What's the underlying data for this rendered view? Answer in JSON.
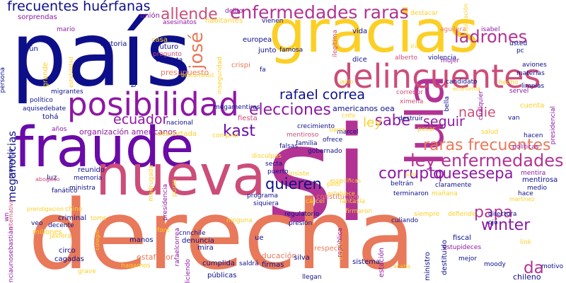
{
  "palette": {
    "navy": "#0d0f8a",
    "purple": "#6a0aa8",
    "violet": "#8e18a4",
    "magenta": "#b23393",
    "rose": "#cc4d79",
    "coral": "#e8795a",
    "amber": "#f7a13c",
    "gold": "#fccf25"
  },
  "words": [
    {
      "text": "si",
      "color": "magenta"
    },
    {
      "text": "país",
      "color": "navy"
    },
    {
      "text": "derecha",
      "color": "coral"
    },
    {
      "text": "gracias",
      "color": "gold"
    },
    {
      "text": "fraude",
      "color": "purple"
    },
    {
      "text": "nueva",
      "color": "rose"
    },
    {
      "text": "lula",
      "color": "magenta"
    },
    {
      "text": "delincuentes",
      "color": "rose"
    },
    {
      "text": "posibilidad",
      "color": "violet"
    },
    {
      "text": "enfermedades raras",
      "color": "magenta"
    },
    {
      "text": "ley enfermedades",
      "color": "magenta"
    },
    {
      "text": "raras frecuentes",
      "color": "coral"
    },
    {
      "text": "frecuentes huérfanas",
      "color": "navy"
    },
    {
      "text": "ladrones",
      "color": "magenta"
    },
    {
      "text": "allende",
      "color": "rose"
    },
    {
      "text": "josé",
      "color": "coral"
    },
    {
      "text": "rafael correa",
      "color": "navy"
    },
    {
      "text": "elecciones",
      "color": "violet"
    },
    {
      "text": "kast",
      "color": "purple"
    },
    {
      "text": "ecuador",
      "color": "violet"
    },
    {
      "text": "corrupto",
      "color": "violet"
    },
    {
      "text": "quesesepa",
      "color": "violet"
    },
    {
      "text": "quieren",
      "color": "navy"
    },
    {
      "text": "seguir",
      "color": "violet"
    },
    {
      "text": "nadie",
      "color": "rose"
    },
    {
      "text": "sabe",
      "color": "violet"
    },
    {
      "text": "winter",
      "color": "violet"
    },
    {
      "text": "papa",
      "color": "magenta"
    },
    {
      "text": "da",
      "color": "magenta"
    },
    {
      "text": "meganoticias",
      "color": "navy"
    },
    {
      "text": "ley",
      "color": "gold"
    },
    {
      "text": "americanos oea",
      "color": "navy"
    },
    {
      "text": "organización americanos",
      "color": "violet"
    },
    {
      "text": "aún",
      "color": "navy"
    },
    {
      "text": "sorprendas",
      "color": "violet"
    },
    {
      "text": "unión",
      "color": "violet"
    },
    {
      "text": "asesinatos",
      "color": "violet"
    },
    {
      "text": "delito",
      "color": "violet"
    },
    {
      "text": "habitantes",
      "color": "gold"
    },
    {
      "text": "vienen",
      "color": "navy"
    },
    {
      "text": "mario",
      "color": "violet"
    },
    {
      "text": "historia",
      "color": "navy"
    },
    {
      "text": "casa",
      "color": "gold"
    },
    {
      "text": "futuro",
      "color": "navy"
    },
    {
      "text": "pregunto",
      "color": "rose"
    },
    {
      "text": "corrupta",
      "color": "navy"
    },
    {
      "text": "trump",
      "color": "navy"
    },
    {
      "text": "presupuesto",
      "color": "coral"
    },
    {
      "text": "europea",
      "color": "navy"
    },
    {
      "text": "junto",
      "color": "navy"
    },
    {
      "text": "crispi",
      "color": "coral"
    },
    {
      "text": "inseguridad",
      "color": "gold"
    },
    {
      "text": "famosa",
      "color": "navy"
    },
    {
      "text": "fa",
      "color": "navy"
    },
    {
      "text": "iraci",
      "color": "gold"
    },
    {
      "text": "vida",
      "color": "navy"
    },
    {
      "text": "ilegítima",
      "color": "rose"
    },
    {
      "text": "dice",
      "color": "navy"
    },
    {
      "text": "aguilera",
      "color": "coral"
    },
    {
      "text": "isabel",
      "color": "violet"
    },
    {
      "text": "mujer",
      "color": "violet"
    },
    {
      "text": "usted",
      "color": "navy"
    },
    {
      "text": "pc",
      "color": "navy"
    },
    {
      "text": "destacar",
      "color": "gold"
    },
    {
      "text": "explicación",
      "color": "gold"
    },
    {
      "text": "alberto",
      "color": "rose"
    },
    {
      "text": "violencia",
      "color": "navy"
    },
    {
      "text": "aviones",
      "color": "navy"
    },
    {
      "text": "materias",
      "color": "navy"
    },
    {
      "text": "candidato",
      "color": "navy"
    },
    {
      "text": "hecho",
      "color": "gold"
    },
    {
      "text": "limpias",
      "color": "navy"
    },
    {
      "text": "servel",
      "color": "violet"
    },
    {
      "text": "cuenta",
      "color": "gold"
    },
    {
      "text": "corredor",
      "color": "rose"
    },
    {
      "text": "ximena",
      "color": "rose"
    },
    {
      "text": "bella",
      "color": "navy"
    },
    {
      "text": "cualquier",
      "color": "violet"
    },
    {
      "text": "político",
      "color": "navy"
    },
    {
      "text": "aquisedebate",
      "color": "navy"
    },
    {
      "text": "migrantes",
      "color": "navy"
    },
    {
      "text": "tohá",
      "color": "navy"
    },
    {
      "text": "nacional",
      "color": "navy"
    },
    {
      "text": "fiesta",
      "color": "rose"
    },
    {
      "text": "megamentiras",
      "color": "navy"
    },
    {
      "text": "cntv",
      "color": "gold"
    },
    {
      "text": "crecimiento",
      "color": "navy"
    },
    {
      "text": "marcel",
      "color": "navy"
    },
    {
      "text": "sierra",
      "color": "gold"
    },
    {
      "text": "destruir",
      "color": "navy"
    },
    {
      "text": "pesar",
      "color": "gold"
    },
    {
      "text": "salud",
      "color": "gold"
    },
    {
      "text": "van",
      "color": "navy"
    },
    {
      "text": "hacen",
      "color": "navy"
    },
    {
      "text": "políticas",
      "color": "violet"
    },
    {
      "text": "presidencial",
      "color": "violet"
    },
    {
      "text": "medio",
      "color": "navy"
    },
    {
      "text": "mentira",
      "color": "violet"
    },
    {
      "text": "mentirosa",
      "color": "navy"
    },
    {
      "text": "hace",
      "color": "navy"
    },
    {
      "text": "mentiroso",
      "color": "rose"
    },
    {
      "text": "ofrece",
      "color": "navy"
    },
    {
      "text": "gobernado",
      "color": "navy"
    },
    {
      "text": "familia",
      "color": "navy"
    },
    {
      "text": "falsas",
      "color": "navy"
    },
    {
      "text": "secta",
      "color": "navy"
    },
    {
      "text": "puerto",
      "color": "navy"
    },
    {
      "text": "insiste",
      "color": "gold"
    },
    {
      "text": "especificas",
      "color": "gold"
    },
    {
      "text": "establece",
      "color": "gold"
    },
    {
      "text": "disculpas",
      "color": "gold"
    },
    {
      "text": "beltrán",
      "color": "navy"
    },
    {
      "text": "claramente",
      "color": "navy"
    },
    {
      "text": "mañana",
      "color": "gold"
    },
    {
      "text": "terminaron",
      "color": "navy"
    },
    {
      "text": "descartada",
      "color": "gold"
    },
    {
      "text": "comprar",
      "color": "gold"
    },
    {
      "text": "reunido",
      "color": "navy"
    },
    {
      "text": "madrugada",
      "color": "gold"
    },
    {
      "text": "puras",
      "color": "gold"
    },
    {
      "text": "presidencia",
      "color": "violet"
    },
    {
      "text": "memoria",
      "color": "navy"
    },
    {
      "text": "ministra",
      "color": "navy"
    },
    {
      "text": "luz",
      "color": "navy"
    },
    {
      "text": "fanático",
      "color": "navy"
    },
    {
      "text": "abogado",
      "color": "rose"
    },
    {
      "text": "promulgó",
      "color": "navy"
    },
    {
      "text": "años",
      "color": "violet"
    },
    {
      "text": "alternativa",
      "color": "rose"
    },
    {
      "text": "persona",
      "color": "navy"
    },
    {
      "text": "grande",
      "color": "gold"
    },
    {
      "text": "estabilidad",
      "color": "gold"
    },
    {
      "text": "prendigacion",
      "color": "gold"
    },
    {
      "text": "chino",
      "color": "gold"
    },
    {
      "text": "criminal",
      "color": "navy"
    },
    {
      "text": "decente",
      "color": "navy"
    },
    {
      "text": "veo",
      "color": "navy"
    },
    {
      "text": "millones",
      "color": "gold"
    },
    {
      "text": "agenciaunosebastián",
      "color": "violet"
    },
    {
      "text": "wn",
      "color": "violet"
    },
    {
      "text": "programa",
      "color": "navy"
    },
    {
      "text": "siquiera",
      "color": "navy"
    },
    {
      "text": "constitución",
      "color": "coral"
    },
    {
      "text": "peor",
      "color": "gold"
    },
    {
      "text": "regulatorio",
      "color": "navy"
    },
    {
      "text": "presión",
      "color": "navy"
    },
    {
      "text": "cárcel",
      "color": "gold"
    },
    {
      "text": "juro",
      "color": "gold"
    },
    {
      "text": "martinez",
      "color": "gold"
    },
    {
      "text": "fantasía",
      "color": "gold"
    },
    {
      "text": "firmaron",
      "color": "gold"
    },
    {
      "text": "siempre",
      "color": "gold"
    },
    {
      "text": "defiende",
      "color": "gold"
    },
    {
      "text": "directora",
      "color": "navy"
    },
    {
      "text": "ojo",
      "color": "navy"
    },
    {
      "text": "culiando",
      "color": "navy"
    },
    {
      "text": "link",
      "color": "gold"
    },
    {
      "text": "toms",
      "color": "gold"
    },
    {
      "text": "ninguna",
      "color": "gold"
    },
    {
      "text": "manos",
      "color": "navy"
    },
    {
      "text": "font",
      "color": "gold"
    },
    {
      "text": "cnnchile",
      "color": "navy"
    },
    {
      "text": "denuncia",
      "color": "navy"
    },
    {
      "text": "mira",
      "color": "navy"
    },
    {
      "text": "estafador",
      "color": "coral"
    },
    {
      "text": "rafaelcorrea",
      "color": "violet"
    },
    {
      "text": "respecto",
      "color": "coral"
    },
    {
      "text": "ue",
      "color": "navy"
    },
    {
      "text": "educación",
      "color": "coral"
    },
    {
      "text": "república",
      "color": "violet"
    },
    {
      "text": "fiscal",
      "color": "navy"
    },
    {
      "text": "estupideces",
      "color": "violet"
    },
    {
      "text": "destituido",
      "color": "navy"
    },
    {
      "text": "javiera",
      "color": "gold"
    },
    {
      "text": "circo",
      "color": "navy"
    },
    {
      "text": "cagadas",
      "color": "navy"
    },
    {
      "text": "colegio",
      "color": "gold"
    },
    {
      "text": "hagamos",
      "color": "gold"
    },
    {
      "text": "diciendo",
      "color": "violet"
    },
    {
      "text": "cumplida",
      "color": "navy"
    },
    {
      "text": "saldrá",
      "color": "navy"
    },
    {
      "text": "silva",
      "color": "navy"
    },
    {
      "text": "sistema",
      "color": "navy"
    },
    {
      "text": "firmas",
      "color": "navy"
    },
    {
      "text": "mucho",
      "color": "gold"
    },
    {
      "text": "estación",
      "color": "violet"
    },
    {
      "text": "acaba",
      "color": "gold"
    },
    {
      "text": "ministro",
      "color": "navy"
    },
    {
      "text": "mejor",
      "color": "navy"
    },
    {
      "text": "moody",
      "color": "navy"
    },
    {
      "text": "motivo",
      "color": "navy"
    },
    {
      "text": "grave",
      "color": "gold"
    },
    {
      "text": "cadem",
      "color": "gold"
    },
    {
      "text": "públicas",
      "color": "navy"
    },
    {
      "text": "llegan",
      "color": "navy"
    },
    {
      "text": "chileno",
      "color": "navy"
    },
    {
      "text": "economía",
      "color": "gold"
    },
    {
      "text": "biocombust",
      "color": "gold"
    },
    {
      "text": "jaldo",
      "color": "gold"
    }
  ]
}
